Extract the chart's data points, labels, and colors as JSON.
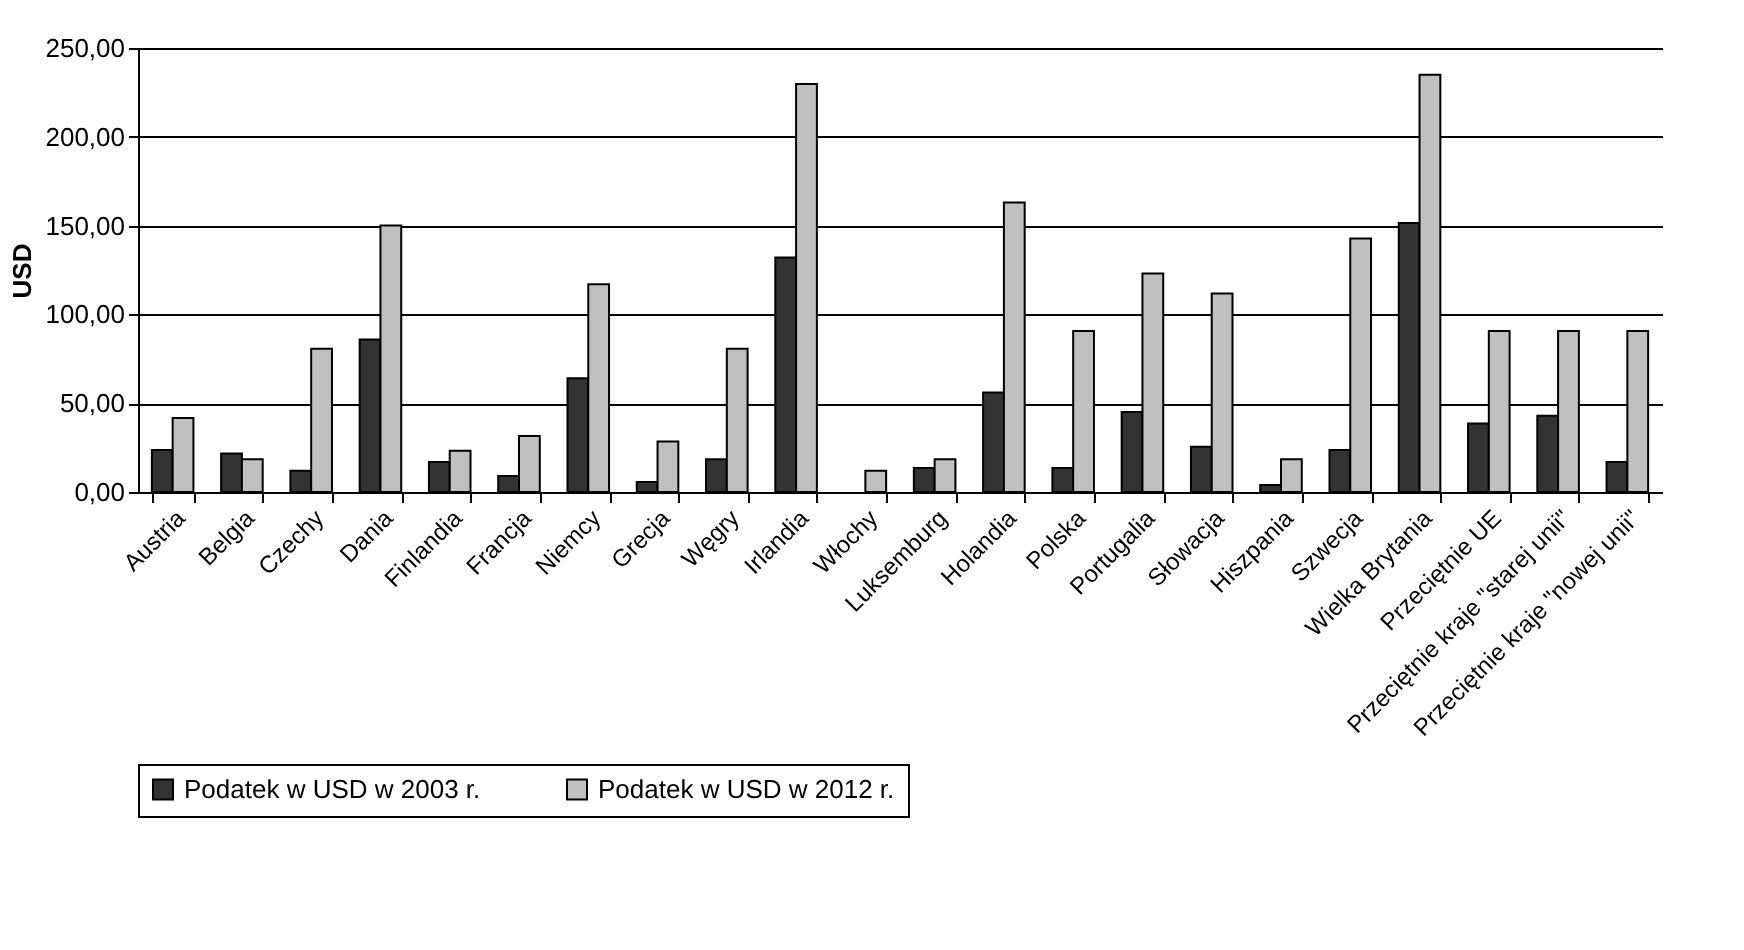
{
  "chart_data": {
    "type": "bar",
    "ylabel": "USD",
    "categories": [
      "Austria",
      "Belgia",
      "Czechy",
      "Dania",
      "Finlandia",
      "Francja",
      "Niemcy",
      "Grecja",
      "Węgry",
      "Irlandia",
      "Włochy",
      "Luksemburg",
      "Holandia",
      "Polska",
      "Portugalia",
      "Słowacja",
      "Hiszpania",
      "Szwecja",
      "Wielka Brytania",
      "Przeciętnie UE",
      "Przeciętnie kraje \"starej unii\"",
      "Przeciętnie kraje \"nowej unii\""
    ],
    "series": [
      {
        "name": "Podatek w USD w 2003 r.",
        "color": "#333333",
        "values": [
          23.6,
          21.7,
          12,
          85.8,
          16.9,
          9,
          64,
          5.6,
          18.4,
          132,
          null,
          13.5,
          56,
          13.5,
          45,
          25.5,
          4,
          23.6,
          151.4,
          38.6,
          43,
          16.9
        ]
      },
      {
        "name": "Podatek w USD w 2012 r.",
        "color": "#c0c0c0",
        "values": [
          41.6,
          18.4,
          80.6,
          150,
          23.2,
          31.5,
          117,
          28.5,
          80.6,
          229.8,
          12,
          18.4,
          163,
          90.7,
          123,
          111.7,
          18.4,
          142.8,
          235,
          90.7,
          90.7,
          90.7
        ]
      }
    ],
    "ylim": [
      0,
      250
    ],
    "yticks": [
      {
        "value": 0,
        "label": "0,00"
      },
      {
        "value": 50,
        "label": "50,00"
      },
      {
        "value": 100,
        "label": "100,00"
      },
      {
        "value": 150,
        "label": "150,00"
      },
      {
        "value": 200,
        "label": "200,00"
      },
      {
        "value": 250,
        "label": "250,00"
      }
    ],
    "grid": "y",
    "legend": "bottom"
  }
}
